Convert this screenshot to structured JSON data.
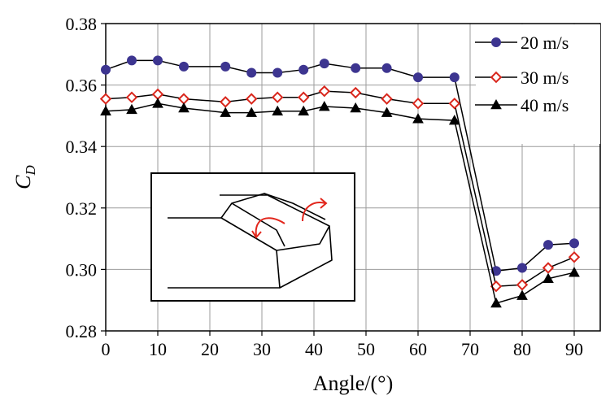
{
  "chart_data": {
    "type": "line",
    "xlabel": "Angle/(°)",
    "ylabel": {
      "main": "C",
      "sub": "D"
    },
    "xlim": [
      0,
      95
    ],
    "ylim": [
      0.28,
      0.38
    ],
    "xticks": [
      0,
      10,
      20,
      30,
      40,
      50,
      60,
      70,
      80,
      90
    ],
    "yticks": [
      0.28,
      0.3,
      0.32,
      0.34,
      0.36,
      0.38
    ],
    "xtick_labels": [
      "0",
      "10",
      "20",
      "30",
      "40",
      "50",
      "60",
      "70",
      "80",
      "90"
    ],
    "ytick_labels": [
      "0.28",
      "0.30",
      "0.32",
      "0.34",
      "0.36",
      "0.38"
    ],
    "grid": true,
    "legend_position": "top-right",
    "series": [
      {
        "name": "20 m/s",
        "marker": "circle",
        "color": "#3d3590",
        "x": [
          0,
          5,
          10,
          15,
          23,
          28,
          33,
          38,
          42,
          48,
          54,
          60,
          67,
          75,
          80,
          85,
          90
        ],
        "y": [
          0.365,
          0.368,
          0.368,
          0.366,
          0.366,
          0.364,
          0.364,
          0.365,
          0.367,
          0.3655,
          0.3655,
          0.3625,
          0.3625,
          0.2995,
          0.3005,
          0.308,
          0.3085
        ]
      },
      {
        "name": "30 m/s",
        "marker": "diamond",
        "color": "#d9261c",
        "x": [
          0,
          5,
          10,
          15,
          23,
          28,
          33,
          38,
          42,
          48,
          54,
          60,
          67,
          75,
          80,
          85,
          90
        ],
        "y": [
          0.3555,
          0.356,
          0.357,
          0.3555,
          0.3545,
          0.3555,
          0.356,
          0.356,
          0.358,
          0.3575,
          0.3555,
          0.354,
          0.354,
          0.2945,
          0.295,
          0.3005,
          0.304
        ]
      },
      {
        "name": "40 m/s",
        "marker": "triangle",
        "color": "#000000",
        "x": [
          0,
          5,
          10,
          15,
          23,
          28,
          33,
          38,
          42,
          48,
          54,
          60,
          67,
          75,
          80,
          85,
          90
        ],
        "y": [
          0.3515,
          0.352,
          0.354,
          0.3525,
          0.351,
          0.351,
          0.3515,
          0.3515,
          0.353,
          0.3525,
          0.351,
          0.349,
          0.3485,
          0.289,
          0.2915,
          0.297,
          0.299
        ]
      }
    ],
    "inset": {
      "type": "illustration",
      "subject": "vehicle-corner-sketch-with-rotation-arrows"
    }
  }
}
